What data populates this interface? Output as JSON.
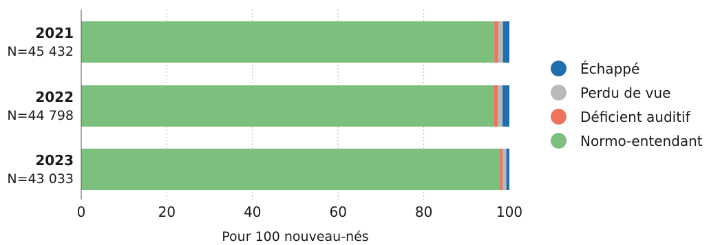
{
  "chart_data": {
    "type": "bar",
    "orientation": "horizontal",
    "stacked": true,
    "categories": [
      {
        "year": "2021",
        "count": "N=45 432"
      },
      {
        "year": "2022",
        "count": "N=44 798"
      },
      {
        "year": "2023",
        "count": "N=43 033"
      }
    ],
    "series": [
      {
        "name": "Normo-entendant",
        "color": "#7dbf7d",
        "values": [
          96.5,
          96.4,
          97.8
        ]
      },
      {
        "name": "Déficient auditif",
        "color": "#ed735b",
        "values": [
          0.9,
          0.9,
          0.6
        ]
      },
      {
        "name": "Perdu de vue",
        "color": "#b9b9b9",
        "values": [
          1.1,
          1.1,
          0.9
        ]
      },
      {
        "name": "Échappé",
        "color": "#1f6fb0",
        "values": [
          1.5,
          1.6,
          0.7
        ]
      }
    ],
    "legend_order": [
      "Échappé",
      "Perdu de vue",
      "Déficient auditif",
      "Normo-entendant"
    ],
    "xlim": [
      0,
      100
    ],
    "xticks": [
      "0",
      "20",
      "40",
      "60",
      "80",
      "100"
    ],
    "xlabel": "Pour 100 nouveau-nés",
    "grid": "vertical-dotted",
    "legend_position": "right"
  }
}
